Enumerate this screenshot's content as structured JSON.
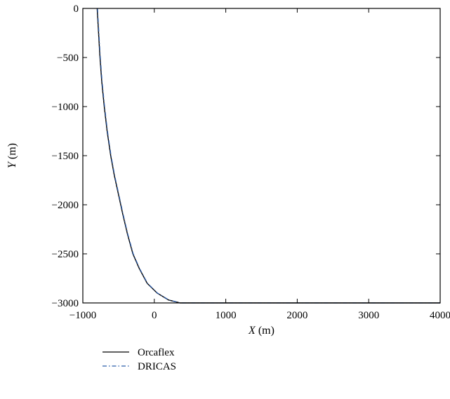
{
  "chart_data": {
    "type": "line",
    "title": "",
    "xlabel": {
      "symbol": "X",
      "unit": "(m)"
    },
    "ylabel": {
      "symbol": "Y",
      "unit": "(m)"
    },
    "xlim": [
      -1000,
      4000
    ],
    "ylim": [
      -3000,
      0
    ],
    "xticks": [
      -1000,
      0,
      1000,
      2000,
      3000,
      4000
    ],
    "xtick_labels": [
      "−1000",
      "0",
      "1000",
      "2000",
      "3000",
      "4000"
    ],
    "yticks": [
      0,
      -500,
      -1000,
      -1500,
      -2000,
      -2500,
      -3000
    ],
    "ytick_labels": [
      "0",
      "−500",
      "−1000",
      "−1500",
      "−2000",
      "−2500",
      "−3000"
    ],
    "grid": false,
    "legend_position": "below-left",
    "series": [
      {
        "name": "Orcaflex",
        "style": "solid",
        "color": "#000000",
        "x": [
          -800,
          -780,
          -760,
          -735,
          -700,
          -660,
          -610,
          -560,
          -500,
          -440,
          -375,
          -300,
          -210,
          -100,
          40,
          200,
          360,
          400,
          4000
        ],
        "y": [
          0,
          -250,
          -500,
          -750,
          -1000,
          -1250,
          -1500,
          -1700,
          -1900,
          -2100,
          -2300,
          -2500,
          -2650,
          -2800,
          -2900,
          -2970,
          -3000,
          -3000,
          -3000
        ]
      },
      {
        "name": "DRICAS",
        "style": "dash-dot",
        "color": "#2b5cab",
        "x": [
          -795,
          -775,
          -755,
          -730,
          -695,
          -655,
          -605,
          -555,
          -495,
          -435,
          -370,
          -295,
          -205,
          -95,
          45,
          205,
          365,
          405,
          4000
        ],
        "y": [
          0,
          -250,
          -500,
          -750,
          -1000,
          -1250,
          -1500,
          -1700,
          -1900,
          -2100,
          -2300,
          -2500,
          -2650,
          -2800,
          -2900,
          -2970,
          -3000,
          -3000,
          -3000
        ]
      }
    ]
  }
}
